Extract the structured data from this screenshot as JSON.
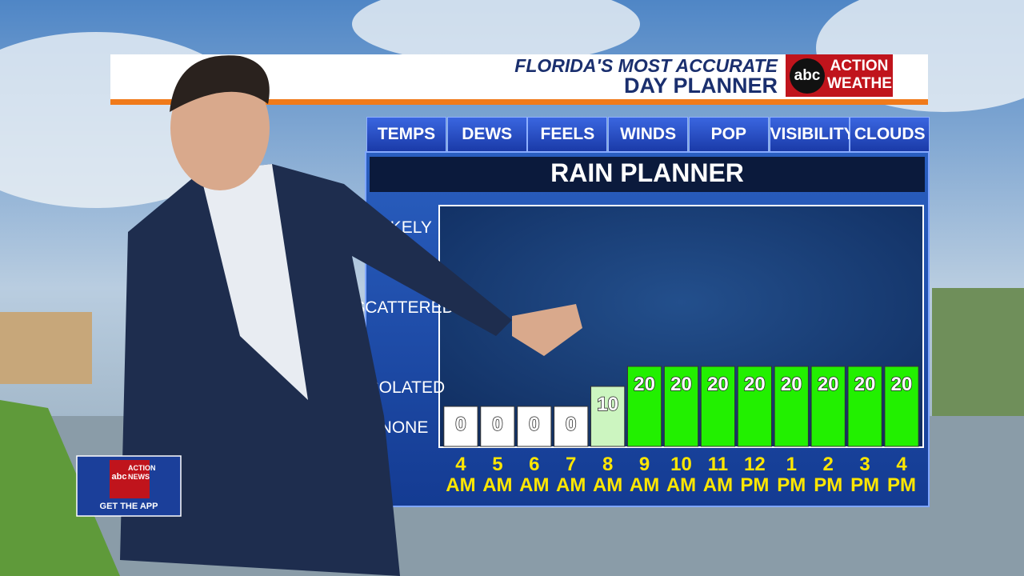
{
  "header": {
    "line1": "FLORIDA'S MOST ACCURATE",
    "line2": "DAY PLANNER",
    "logo": "abc",
    "logo_text": "ACTION WEATHER"
  },
  "tabs": [
    "TEMPS",
    "DEWS",
    "FEELS",
    "WINDS",
    "POP",
    "VISIBILITY",
    "CLOUDS"
  ],
  "badge": {
    "logo": "abc",
    "logo_text": "ACTION NEWS",
    "cta": "GET THE APP"
  },
  "chart_data": {
    "type": "bar",
    "title": "RAIN PLANNER",
    "categories": [
      "4 AM",
      "5 AM",
      "6 AM",
      "7 AM",
      "8 AM",
      "9 AM",
      "10 AM",
      "11 AM",
      "12 PM",
      "1 PM",
      "2 PM",
      "3 PM",
      "4 PM"
    ],
    "values": [
      0,
      0,
      0,
      0,
      10,
      20,
      20,
      20,
      20,
      20,
      20,
      20,
      20
    ],
    "colors": [
      "#ffffff",
      "#ffffff",
      "#ffffff",
      "#ffffff",
      "#ccf5c0",
      "#22f000",
      "#22f000",
      "#22f000",
      "#22f000",
      "#22f000",
      "#22f000",
      "#22f000",
      "#22f000"
    ],
    "ylim": [
      -20,
      100
    ],
    "yticks": [
      {
        "value": -10,
        "label": "NONE"
      },
      {
        "value": 10,
        "label": "ISOLATED"
      },
      {
        "value": 50,
        "label": "SCATTERED"
      },
      {
        "value": 90,
        "label": "LIKELY"
      }
    ],
    "grid": false
  }
}
